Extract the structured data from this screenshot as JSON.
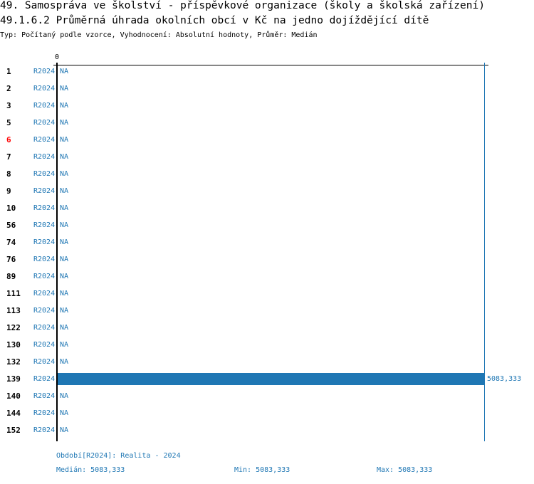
{
  "header": {
    "title": "49. Samospráva ve školství - příspěvkové organizace (školy a školská zařízení)",
    "subtitle": "49.1.6.2 Průměrná úhrada okolních obcí v Kč na jedno dojíždějící dítě",
    "meta": "Typ: Počítaný podle vzorce, Vyhodnocení: Absolutní hodnoty, Průměr: Medián"
  },
  "chart_data": {
    "type": "bar",
    "orientation": "horizontal",
    "x_tick_labels": [
      "0"
    ],
    "xlim": [
      0,
      5083.333
    ],
    "categories": [
      "1",
      "2",
      "3",
      "5",
      "6",
      "7",
      "8",
      "9",
      "10",
      "56",
      "74",
      "76",
      "89",
      "111",
      "113",
      "122",
      "130",
      "132",
      "139",
      "140",
      "144",
      "152"
    ],
    "highlighted_category": "6",
    "highlight_color": "#ff0000",
    "bar_color": "#1f77b4",
    "series": [
      {
        "name": "R2024",
        "values": [
          null,
          null,
          null,
          null,
          null,
          null,
          null,
          null,
          null,
          null,
          null,
          null,
          null,
          null,
          null,
          null,
          null,
          null,
          5083.333,
          null,
          null,
          null
        ]
      }
    ],
    "value_labels": [
      "NA",
      "NA",
      "NA",
      "NA",
      "NA",
      "NA",
      "NA",
      "NA",
      "NA",
      "NA",
      "NA",
      "NA",
      "NA",
      "NA",
      "NA",
      "NA",
      "NA",
      "NA",
      "5083,333",
      "NA",
      "NA",
      "NA"
    ],
    "reference_line": 5083.333
  },
  "footer": {
    "period": "Období[R2024]: Realita - 2024",
    "median": "Medián: 5083,333",
    "min": "Min: 5083,333",
    "max": "Max: 5083,333"
  }
}
